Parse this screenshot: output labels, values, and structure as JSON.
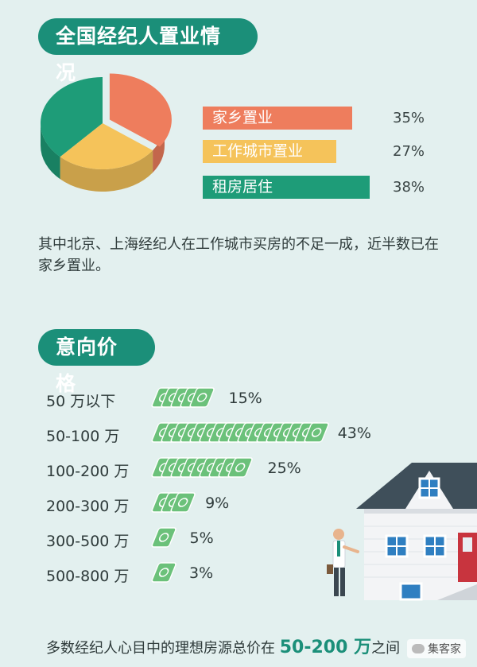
{
  "section1": {
    "title": "全国经纪人置业情况",
    "description": "其中北京、上海经纪人在工作城市买房的不足一成，近半数已在家乡置业。"
  },
  "section2": {
    "title": "意向价格"
  },
  "footer": {
    "prefix": "多数经纪人心目中的理想房源总价在",
    "highlight": "50-200 万",
    "suffix": "之间"
  },
  "brand": "集客家",
  "colors": {
    "accent": "#1b8f79",
    "hometown": "#ee7d5d",
    "workcity": "#f5c35a",
    "renting": "#1e9c78",
    "money": "#6bc17a"
  },
  "icons": [
    "money-bill-icon",
    "house-illustration",
    "person-illustration",
    "brand-logo-icon"
  ],
  "chart_data": [
    {
      "type": "pie",
      "labels": [
        "家乡置业",
        "工作城市置业",
        "租房居住"
      ],
      "values": [
        35,
        27,
        38
      ],
      "value_labels": [
        "35%",
        "27%",
        "38%"
      ],
      "colors": [
        "#ee7d5d",
        "#f5c35a",
        "#1e9c78"
      ]
    },
    {
      "type": "bar",
      "categories": [
        "50 万以下",
        "50-100 万",
        "100-200 万",
        "200-300 万",
        "300-500 万",
        "500-800 万"
      ],
      "values": [
        15,
        43,
        25,
        9,
        5,
        3
      ],
      "value_labels": [
        "15%",
        "43%",
        "25%",
        "9%",
        "5%",
        "3%"
      ]
    }
  ]
}
